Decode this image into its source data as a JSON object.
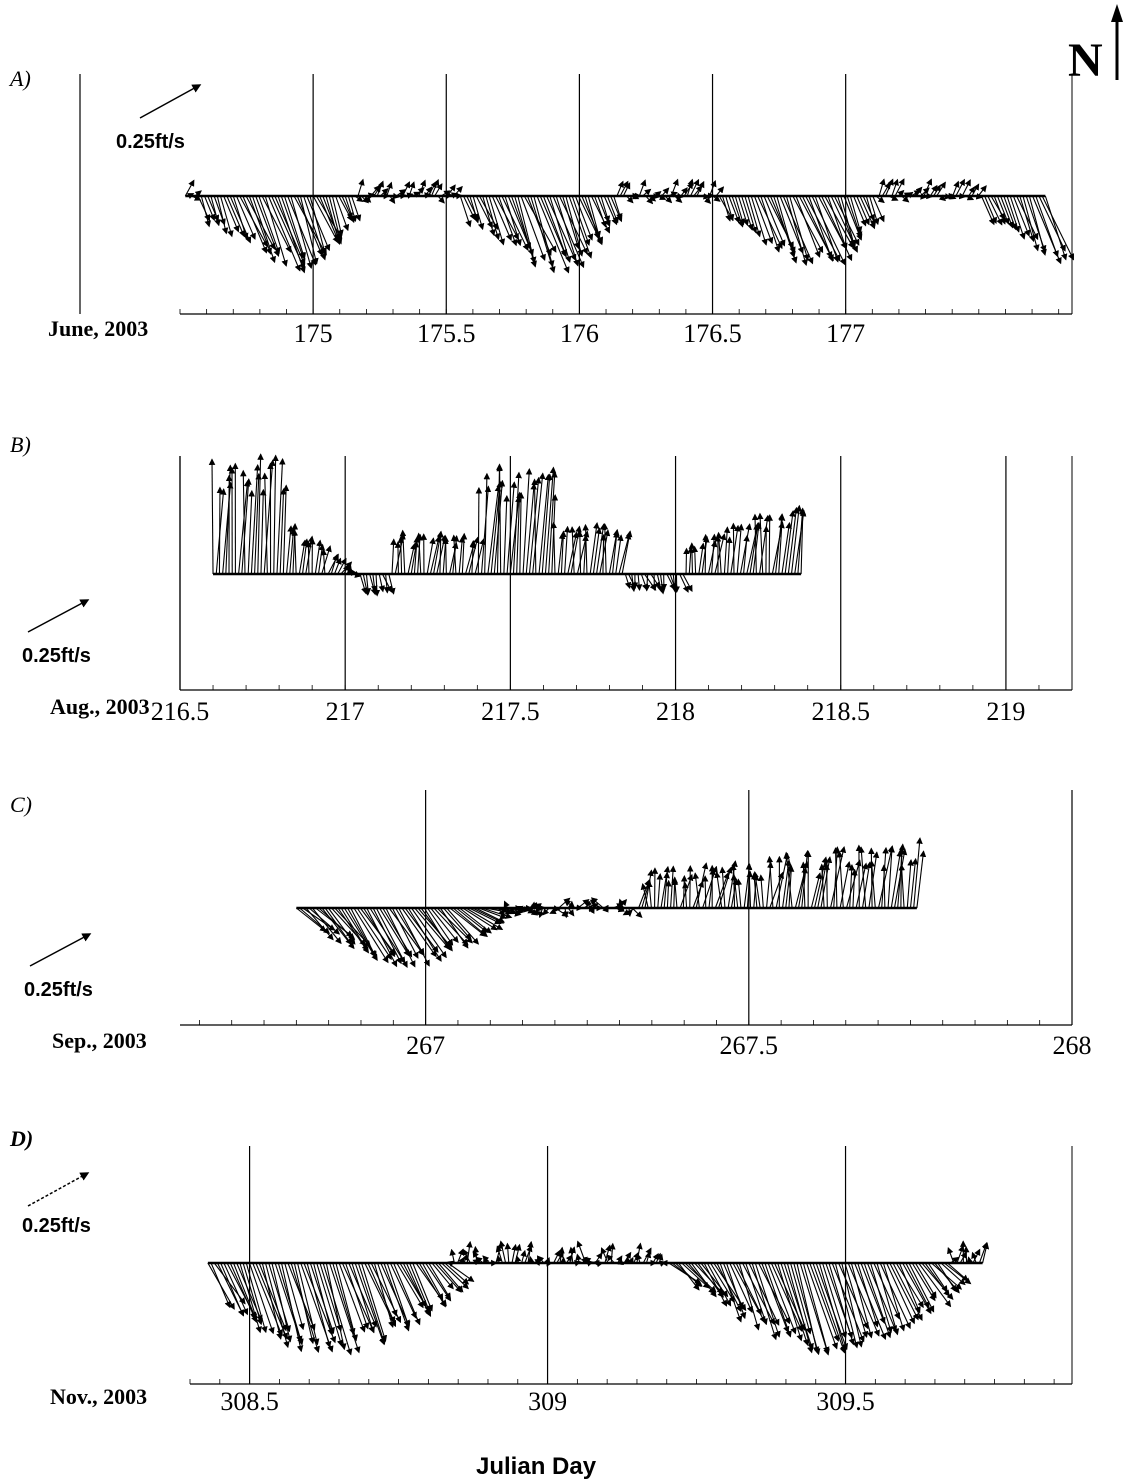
{
  "north": {
    "label": "N"
  },
  "xlabel": "Julian Day",
  "chart_data": [
    {
      "type": "vector",
      "panel": "A)",
      "month": "June, 2003",
      "scale_label": "0.25ft/s",
      "xlim": [
        174.5,
        177.85
      ],
      "ticks": [
        175,
        175.5,
        176,
        176.5,
        177
      ],
      "tick_labels": [
        "175",
        "175.5",
        "176",
        "176.5",
        "177"
      ],
      "data_range": [
        174.52,
        177.75
      ],
      "profile": "A"
    },
    {
      "type": "vector",
      "panel": "B)",
      "month": "Aug., 2003",
      "scale_label": "0.25ft/s",
      "xlim": [
        216.5,
        219.2
      ],
      "ticks": [
        216.5,
        217,
        217.5,
        218,
        218.5,
        219
      ],
      "tick_labels": [
        "216.5",
        "217",
        "217.5",
        "218",
        "218.5",
        "219"
      ],
      "data_range": [
        216.6,
        218.38
      ],
      "profile": "B"
    },
    {
      "type": "vector",
      "panel": "C)",
      "month": "Sep., 2003",
      "scale_label": "0.25ft/s",
      "xlim": [
        266.62,
        268.0
      ],
      "ticks": [
        267,
        267.5,
        268
      ],
      "tick_labels": [
        "267",
        "267.5",
        "268"
      ],
      "data_range": [
        266.8,
        267.76
      ],
      "profile": "C"
    },
    {
      "type": "vector",
      "panel": "D)",
      "month": "Nov., 2003",
      "scale_label": "0.25ft/s",
      "xlim": [
        308.4,
        309.88
      ],
      "ticks": [
        308.5,
        309,
        309.5
      ],
      "tick_labels": [
        "308.5",
        "309",
        "309.5"
      ],
      "data_range": [
        308.43,
        309.73
      ],
      "profile": "D"
    }
  ]
}
